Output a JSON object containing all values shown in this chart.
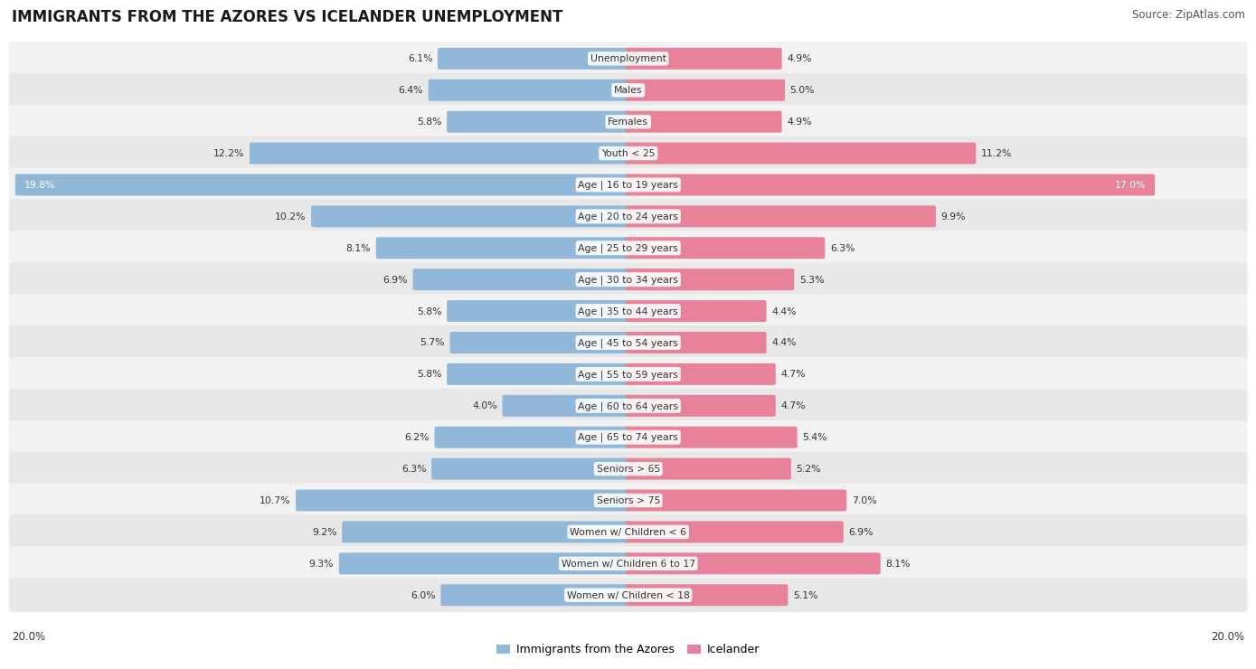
{
  "title": "IMMIGRANTS FROM THE AZORES VS ICELANDER UNEMPLOYMENT",
  "source": "Source: ZipAtlas.com",
  "categories": [
    "Unemployment",
    "Males",
    "Females",
    "Youth < 25",
    "Age | 16 to 19 years",
    "Age | 20 to 24 years",
    "Age | 25 to 29 years",
    "Age | 30 to 34 years",
    "Age | 35 to 44 years",
    "Age | 45 to 54 years",
    "Age | 55 to 59 years",
    "Age | 60 to 64 years",
    "Age | 65 to 74 years",
    "Seniors > 65",
    "Seniors > 75",
    "Women w/ Children < 6",
    "Women w/ Children 6 to 17",
    "Women w/ Children < 18"
  ],
  "azores_values": [
    6.1,
    6.4,
    5.8,
    12.2,
    19.8,
    10.2,
    8.1,
    6.9,
    5.8,
    5.7,
    5.8,
    4.0,
    6.2,
    6.3,
    10.7,
    9.2,
    9.3,
    6.0
  ],
  "iceland_values": [
    4.9,
    5.0,
    4.9,
    11.2,
    17.0,
    9.9,
    6.3,
    5.3,
    4.4,
    4.4,
    4.7,
    4.7,
    5.4,
    5.2,
    7.0,
    6.9,
    8.1,
    5.1
  ],
  "azores_color": "#92b8d9",
  "iceland_color": "#e8829a",
  "max_val": 20.0,
  "legend_azores": "Immigrants from the Azores",
  "legend_iceland": "Icelander",
  "axis_label_left": "20.0%",
  "axis_label_right": "20.0%"
}
